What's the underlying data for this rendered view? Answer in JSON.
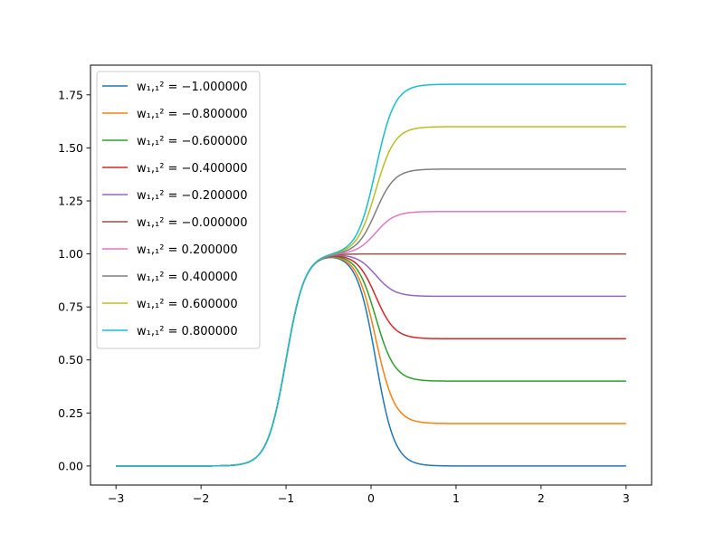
{
  "chart_data": {
    "type": "line",
    "title": "",
    "xlabel": "",
    "ylabel": "",
    "xlim": [
      -3.3,
      3.3
    ],
    "ylim": [
      -0.09,
      1.89
    ],
    "xticks": [
      -3,
      -2,
      -1,
      0,
      1,
      2,
      3
    ],
    "xtick_labels": [
      "−3",
      "−2",
      "−1",
      "0",
      "1",
      "2",
      "3"
    ],
    "yticks": [
      0.0,
      0.25,
      0.5,
      0.75,
      1.0,
      1.25,
      1.5,
      1.75
    ],
    "ytick_labels": [
      "0.00",
      "0.25",
      "0.50",
      "0.75",
      "1.00",
      "1.25",
      "1.50",
      "1.75"
    ],
    "grid": false,
    "legend_position": "top-left",
    "x": [
      -3.0,
      -2.5,
      -2.0,
      -1.5,
      -1.25,
      -1.0,
      -0.75,
      -0.5,
      -0.25,
      0.0,
      0.25,
      0.5,
      0.75,
      1.0,
      1.5,
      2.0,
      2.5,
      3.0
    ],
    "series": [
      {
        "name": "w₁,₁² = −1.000000",
        "weight": -1.0,
        "color": "#1f77b4",
        "values": [
          0.0,
          0.0,
          0.0,
          0.02,
          0.16,
          0.55,
          0.93,
          0.99,
          0.95,
          0.68,
          0.14,
          0.02,
          0.0,
          0.0,
          0.0,
          0.0,
          0.0,
          0.0
        ]
      },
      {
        "name": "w₁,₁² = −0.800000",
        "weight": -0.8,
        "color": "#ff7f0e",
        "values": [
          0.0,
          0.0,
          0.0,
          0.02,
          0.16,
          0.55,
          0.93,
          0.99,
          0.96,
          0.74,
          0.31,
          0.22,
          0.2,
          0.2,
          0.2,
          0.2,
          0.2,
          0.2
        ]
      },
      {
        "name": "w₁,₁² = −0.600000",
        "weight": -0.6,
        "color": "#2ca02c",
        "values": [
          0.0,
          0.0,
          0.0,
          0.02,
          0.16,
          0.55,
          0.93,
          0.99,
          0.97,
          0.81,
          0.48,
          0.41,
          0.4,
          0.4,
          0.4,
          0.4,
          0.4,
          0.4
        ]
      },
      {
        "name": "w₁,₁² = −0.400000",
        "weight": -0.4,
        "color": "#d62728",
        "values": [
          0.0,
          0.0,
          0.0,
          0.02,
          0.16,
          0.55,
          0.93,
          0.99,
          0.98,
          0.87,
          0.65,
          0.61,
          0.6,
          0.6,
          0.6,
          0.6,
          0.6,
          0.6
        ]
      },
      {
        "name": "w₁,₁² = −0.200000",
        "weight": -0.2,
        "color": "#9467bd",
        "values": [
          0.0,
          0.0,
          0.0,
          0.02,
          0.16,
          0.55,
          0.93,
          0.99,
          0.99,
          0.94,
          0.83,
          0.8,
          0.8,
          0.8,
          0.8,
          0.8,
          0.8,
          0.8
        ]
      },
      {
        "name": "w₁,₁² = −0.000000",
        "weight": 0.0,
        "color": "#8c564b",
        "values": [
          0.0,
          0.0,
          0.0,
          0.02,
          0.16,
          0.55,
          0.93,
          0.99,
          1.0,
          1.0,
          1.0,
          1.0,
          1.0,
          1.0,
          1.0,
          1.0,
          1.0,
          1.0
        ]
      },
      {
        "name": "w₁,₁² = 0.200000",
        "weight": 0.2,
        "color": "#e377c2",
        "values": [
          0.0,
          0.0,
          0.0,
          0.02,
          0.16,
          0.55,
          0.93,
          0.99,
          1.01,
          1.06,
          1.17,
          1.2,
          1.2,
          1.2,
          1.2,
          1.2,
          1.2,
          1.2
        ]
      },
      {
        "name": "w₁,₁² = 0.400000",
        "weight": 0.4,
        "color": "#7f7f7f",
        "values": [
          0.0,
          0.0,
          0.0,
          0.02,
          0.16,
          0.55,
          0.93,
          0.99,
          1.02,
          1.13,
          1.35,
          1.39,
          1.4,
          1.4,
          1.4,
          1.4,
          1.4,
          1.4
        ]
      },
      {
        "name": "w₁,₁² = 0.600000",
        "weight": 0.6,
        "color": "#bcbd22",
        "values": [
          0.0,
          0.0,
          0.0,
          0.02,
          0.16,
          0.55,
          0.93,
          0.99,
          1.03,
          1.19,
          1.52,
          1.59,
          1.6,
          1.6,
          1.6,
          1.6,
          1.6,
          1.6
        ]
      },
      {
        "name": "w₁,₁² = 0.800000",
        "weight": 0.8,
        "color": "#17becf",
        "values": [
          0.0,
          0.0,
          0.0,
          0.02,
          0.16,
          0.55,
          0.93,
          0.99,
          1.04,
          1.26,
          1.69,
          1.78,
          1.8,
          1.8,
          1.8,
          1.8,
          1.8,
          1.8
        ]
      }
    ]
  }
}
